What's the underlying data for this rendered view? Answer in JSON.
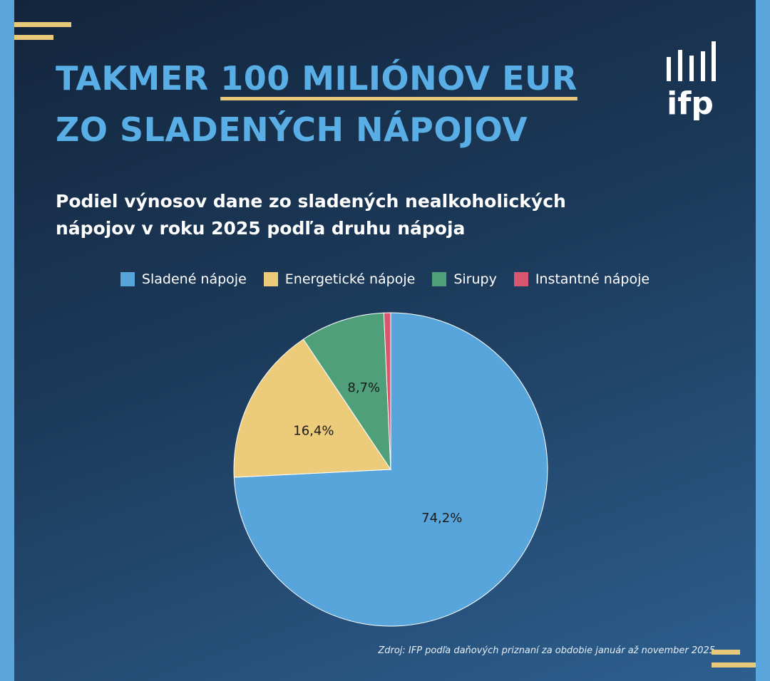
{
  "header": {
    "title_prefix": "TAKMER ",
    "title_highlight": "100 MILIÓNOV EUR",
    "title_line2": "ZO SLADENÝCH NÁPOJOV",
    "logo_text": "ifp"
  },
  "subtitle": {
    "line1": "Podiel výnosov dane zo sladených nealkoholických",
    "line2": "nápojov v roku 2025 podľa druhu nápoja"
  },
  "colors": {
    "accent_yellow": "#e8c97a",
    "title_blue": "#5aaee6"
  },
  "chart_data": {
    "type": "pie",
    "slices": [
      {
        "name": "Sladené nápoje",
        "value": 74.2,
        "label": "74,2%",
        "color": "#58a5dc"
      },
      {
        "name": "Energetické nápoje",
        "value": 16.4,
        "label": "16,4%",
        "color": "#eccb7a"
      },
      {
        "name": "Sirupy",
        "value": 8.7,
        "label": "8,7%",
        "color": "#4fa07a"
      },
      {
        "name": "Instantné nápoje",
        "value": 0.7,
        "label": "",
        "color": "#d95670"
      }
    ],
    "start_angle_deg": 0,
    "direction": "clockwise",
    "legend_position": "top"
  },
  "source": "Zdroj: IFP podľa daňových priznaní za obdobie január až november 2025"
}
